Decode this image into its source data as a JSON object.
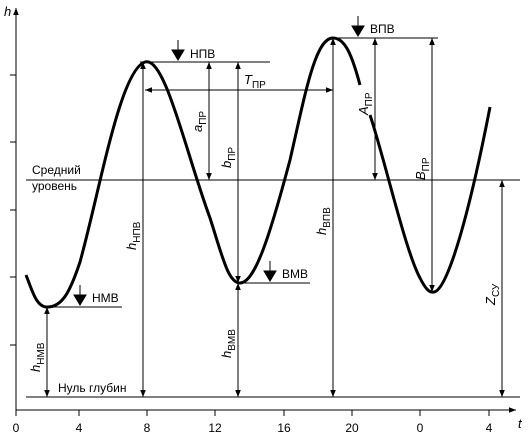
{
  "axes": {
    "y_label": "h",
    "x_label": "t",
    "x_ticks": [
      "0",
      "4",
      "8",
      "12",
      "16",
      "20",
      "0",
      "4"
    ]
  },
  "levels": {
    "npv": "НПВ",
    "vpv": "ВПВ",
    "vmv": "ВМВ",
    "nmv": "НМВ",
    "mean": [
      "Средний",
      "уровень"
    ],
    "zero": "Нуль глубин"
  },
  "dims": [
    {
      "symbol": "h",
      "sub": "НМВ"
    },
    {
      "symbol": "h",
      "sub": "НПВ"
    },
    {
      "symbol": "h",
      "sub": "ВМВ"
    },
    {
      "symbol": "h",
      "sub": "ВПВ"
    },
    {
      "symbol": "a",
      "sub": "ПР"
    },
    {
      "symbol": "b",
      "sub": "ПР"
    },
    {
      "symbol": "T",
      "sub": "ПР"
    },
    {
      "symbol": "A",
      "sub": "ПР"
    },
    {
      "symbol": "B",
      "sub": "ПР"
    },
    {
      "symbol": "Z",
      "sub": "СУ"
    }
  ]
}
